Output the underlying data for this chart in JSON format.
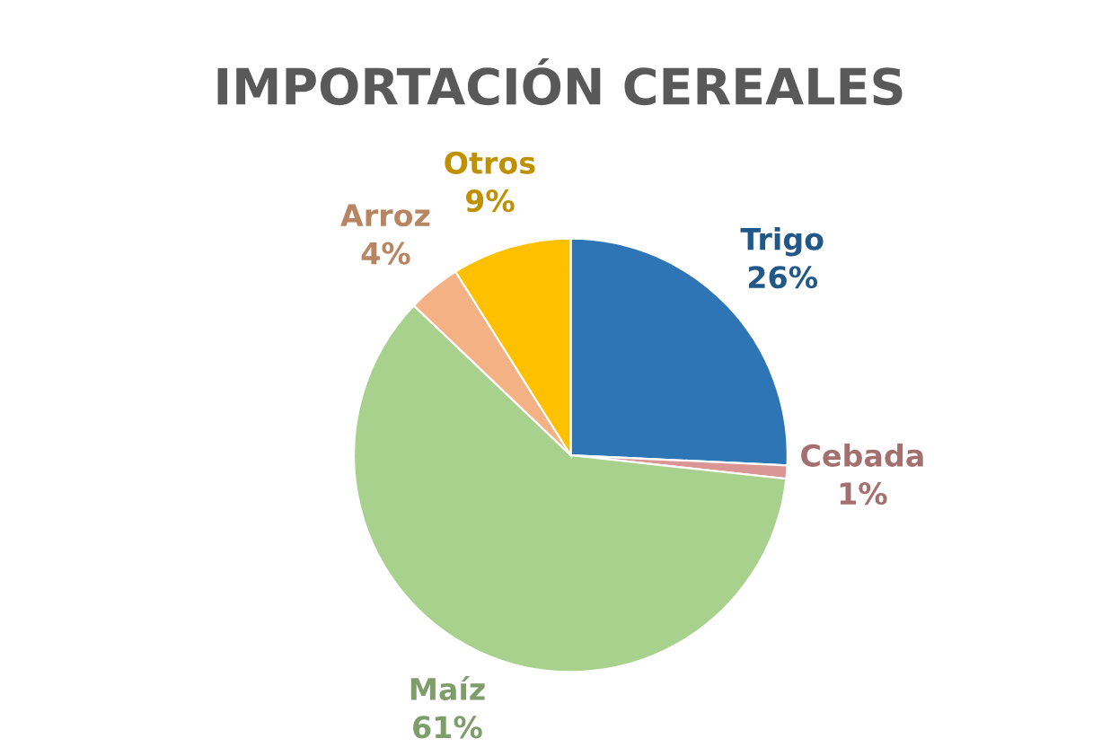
{
  "chart_data": {
    "type": "pie",
    "title": "IMPORTACIÓN CEREALES",
    "categories": [
      "Trigo",
      "Cebada",
      "Maíz",
      "Arroz",
      "Otros"
    ],
    "values": [
      26,
      1,
      61,
      4,
      9
    ],
    "colors": [
      "#2e75b6",
      "#d99694",
      "#a9d18e",
      "#f4b183",
      "#ffc000"
    ],
    "value_labels": [
      "26%",
      "1%",
      "61%",
      "4%",
      "9%"
    ],
    "legend": false
  }
}
